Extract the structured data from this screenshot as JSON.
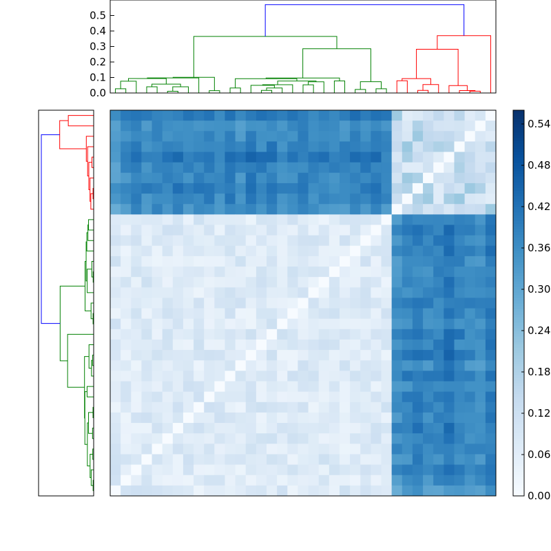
{
  "chart_data": [
    {
      "type": "dendrogram",
      "orientation": "top",
      "ylim": [
        0,
        0.6
      ],
      "yticks": [
        "0.0",
        "0.1",
        "0.2",
        "0.3",
        "0.4",
        "0.5"
      ],
      "ytick_values": [
        0,
        0.1,
        0.2,
        0.3,
        0.4,
        0.5
      ],
      "root_height": 0.57,
      "clusters": [
        {
          "color": "#008000",
          "leaves": 27,
          "height": 0.365
        },
        {
          "color": "#ff0000",
          "leaves": 10,
          "height": 0.37
        }
      ],
      "link_color_root": "#0000ff"
    },
    {
      "type": "dendrogram",
      "orientation": "left",
      "root_height": 0.57,
      "clusters": [
        {
          "color": "#ff0000",
          "leaves": 10
        },
        {
          "color": "#008000",
          "leaves": 27
        }
      ],
      "link_color_root": "#0000ff"
    },
    {
      "type": "heatmap",
      "colormap": "Blues",
      "n_rows": 37,
      "n_cols": 37,
      "vmin": 0,
      "vmax": 0.56,
      "row_order_note": "rows top-to-bottom: cluster B (10 leaves) then cluster A (27 leaves); columns left-to-right: cluster A then cluster B",
      "within_cluster_distance": [
        0.02,
        0.14
      ],
      "between_cluster_distance": [
        0.25,
        0.56
      ]
    },
    {
      "type": "colorbar",
      "colormap": "Blues",
      "vmin": 0,
      "vmax": 0.56,
      "ticks": [
        "0.00",
        "0.06",
        "0.12",
        "0.18",
        "0.24",
        "0.30",
        "0.36",
        "0.42",
        "0.48",
        "0.54"
      ],
      "tick_values": [
        0,
        0.06,
        0.12,
        0.18,
        0.24,
        0.3,
        0.36,
        0.42,
        0.48,
        0.54
      ]
    }
  ]
}
